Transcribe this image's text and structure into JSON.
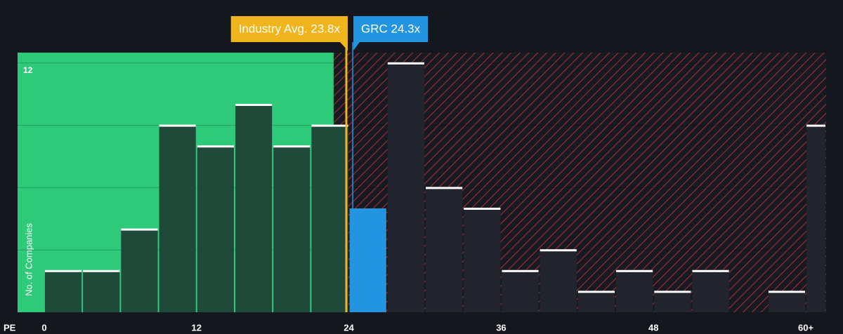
{
  "chart_data": {
    "type": "histogram",
    "x_label": "PE",
    "y_label": "No. of Companies",
    "bins": [
      0,
      3,
      6,
      9,
      12,
      15,
      18,
      21,
      24,
      27,
      30,
      33,
      36,
      39,
      42,
      45,
      48,
      51,
      54,
      57,
      60,
      63
    ],
    "values": [
      2,
      2,
      4,
      9,
      8,
      10,
      8,
      9,
      5,
      12,
      6,
      5,
      2,
      3,
      1,
      2,
      1,
      2,
      0,
      1,
      9
    ],
    "xlim": [
      -2.1,
      61.6
    ],
    "xticks": [
      0,
      12,
      24,
      36,
      48,
      {
        "value": 60,
        "label": "60+"
      }
    ],
    "ylim": [
      0,
      12.5
    ],
    "yticks": [
      {
        "value": 3,
        "label": null
      },
      {
        "value": 6,
        "label": null
      },
      {
        "value": 9,
        "label": null
      },
      12
    ],
    "grid": true,
    "zones": [
      {
        "from": -2.1,
        "to": 22.8,
        "color": "#2fc97a",
        "bar_color": "#1f4a3a"
      },
      {
        "from": 22.8,
        "to": 61.6,
        "color": "#c8383f",
        "bar_color": "#22242e",
        "hatched": true
      }
    ],
    "annotations": [
      {
        "text": "Industry Avg. 23.8x",
        "value": 23.8,
        "color": "#f0b41c",
        "side": "left"
      },
      {
        "text": "GRC 24.3x",
        "value": 24.3,
        "color": "#2394e0",
        "side": "right"
      }
    ]
  }
}
